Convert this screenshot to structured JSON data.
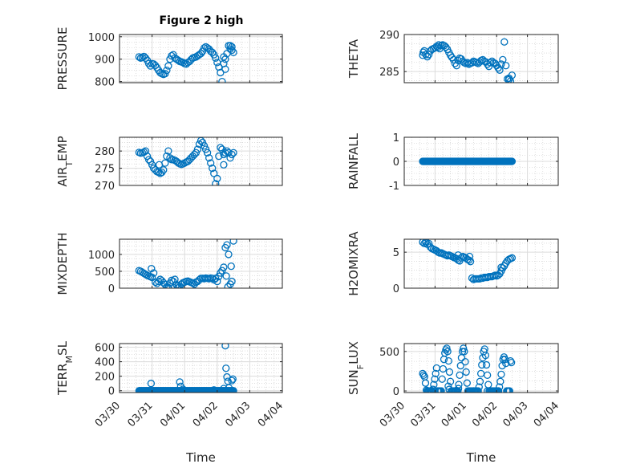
{
  "figure": {
    "title": "Figure 2 high",
    "marker_color": "#0072bd",
    "axis_color": "#262626",
    "grid_color": "#c8c8c8"
  },
  "chart_data": [
    {
      "type": "scatter",
      "ylabel": "PRESSURE",
      "title": "Figure 2 high",
      "xlim": [
        "03/30",
        "04/04"
      ],
      "ylim": [
        795,
        1010
      ],
      "yticks": [
        800,
        900,
        1000
      ],
      "xticks": [
        "03/30",
        "03/31",
        "04/01",
        "04/02",
        "04/03",
        "04/04"
      ],
      "show_xticklabels": false,
      "xlabel": "",
      "grid": true,
      "x": [
        0.6,
        0.65,
        0.7,
        0.75,
        0.8,
        0.85,
        0.9,
        0.95,
        1.0,
        1.05,
        1.1,
        1.15,
        1.2,
        1.25,
        1.3,
        1.35,
        1.4,
        1.45,
        1.5,
        1.55,
        1.6,
        1.65,
        1.7,
        1.75,
        1.8,
        1.85,
        1.9,
        1.95,
        2.0,
        2.05,
        2.1,
        2.15,
        2.2,
        2.25,
        2.3,
        2.35,
        2.4,
        2.45,
        2.5,
        2.55,
        2.6,
        2.65,
        2.7,
        2.75,
        2.8,
        2.85,
        2.9,
        2.95,
        3.0,
        3.05,
        3.1,
        3.15,
        3.2,
        3.25,
        3.3,
        3.35,
        3.4,
        3.45,
        3.5
      ],
      "y": [
        910,
        905,
        908,
        912,
        905,
        895,
        880,
        870,
        880,
        878,
        872,
        862,
        850,
        840,
        835,
        832,
        835,
        850,
        870,
        900,
        915,
        920,
        905,
        900,
        895,
        890,
        888,
        885,
        880,
        878,
        885,
        890,
        898,
        905,
        908,
        910,
        915,
        920,
        925,
        935,
        950,
        955,
        950,
        945,
        935,
        930,
        920,
        905,
        885,
        865,
        840,
        800,
        880,
        900,
        925,
        960,
        960,
        955,
        930
      ],
      "extra": [
        [
          3.25,
          855
        ],
        [
          3.2,
          910
        ],
        [
          3.45,
          940
        ],
        [
          3.4,
          945
        ]
      ]
    },
    {
      "type": "scatter",
      "ylabel": "THETA",
      "xlim": [
        "03/30",
        "04/04"
      ],
      "ylim": [
        283.5,
        290
      ],
      "yticks": [
        285,
        290
      ],
      "xticks": [
        "03/30",
        "03/31",
        "04/01",
        "04/02",
        "04/03",
        "04/04"
      ],
      "show_xticklabels": false,
      "xlabel": "",
      "grid": true,
      "x": [
        0.6,
        0.65,
        0.7,
        0.75,
        0.8,
        0.85,
        0.9,
        0.95,
        1.0,
        1.05,
        1.1,
        1.15,
        1.2,
        1.25,
        1.3,
        1.35,
        1.4,
        1.45,
        1.5,
        1.55,
        1.6,
        1.65,
        1.7,
        1.75,
        1.8,
        1.85,
        1.9,
        1.95,
        2.0,
        2.05,
        2.1,
        2.15,
        2.2,
        2.25,
        2.3,
        2.35,
        2.4,
        2.45,
        2.5,
        2.55,
        2.6,
        2.65,
        2.7,
        2.75,
        2.8,
        2.85,
        2.9,
        2.95,
        3.0,
        3.05,
        3.1,
        3.15,
        3.2,
        3.25,
        3.3,
        3.35,
        3.4,
        3.45,
        3.5
      ],
      "y": [
        287.2,
        287.8,
        287.3,
        287.0,
        287.3,
        287.8,
        288.0,
        288.1,
        288.2,
        288.4,
        288.3,
        288.1,
        288.5,
        288.6,
        288.5,
        288.3,
        288.0,
        287.6,
        287.2,
        286.9,
        286.6,
        286.1,
        285.8,
        286.5,
        286.8,
        286.7,
        286.4,
        286.2,
        286.1,
        286.2,
        286.0,
        286.1,
        286.2,
        286.4,
        286.3,
        286.2,
        286.1,
        286.3,
        286.5,
        286.6,
        286.4,
        286.3,
        286.0,
        285.7,
        286.2,
        286.4,
        286.2,
        286.1,
        285.8,
        285.5,
        285.2,
        286.0,
        286.6,
        289.0,
        285.8,
        284.0,
        283.9,
        283.7,
        284.5
      ],
      "extra": [
        [
          0.62,
          287.6
        ],
        [
          1.12,
          288.6
        ],
        [
          3.4,
          284.1
        ]
      ]
    },
    {
      "type": "scatter",
      "ylabel": "AIR_TEMP",
      "ylabel_main": "AIR",
      "ylabel_sub": "T",
      "ylabel_rest": "EMP",
      "xlim": [
        "03/30",
        "04/04"
      ],
      "ylim": [
        270,
        284
      ],
      "yticks": [
        270,
        275,
        280
      ],
      "xticks": [
        "03/30",
        "03/31",
        "04/01",
        "04/02",
        "04/03",
        "04/04"
      ],
      "show_xticklabels": false,
      "xlabel": "",
      "grid": true,
      "x": [
        0.6,
        0.65,
        0.7,
        0.75,
        0.8,
        0.85,
        0.9,
        0.95,
        1.0,
        1.05,
        1.1,
        1.15,
        1.2,
        1.25,
        1.3,
        1.35,
        1.4,
        1.45,
        1.5,
        1.55,
        1.6,
        1.65,
        1.7,
        1.75,
        1.8,
        1.85,
        1.9,
        1.95,
        2.0,
        2.05,
        2.1,
        2.15,
        2.2,
        2.25,
        2.3,
        2.35,
        2.4,
        2.45,
        2.5,
        2.55,
        2.6,
        2.65,
        2.7,
        2.75,
        2.8,
        2.85,
        2.9,
        2.95,
        3.0,
        3.05,
        3.1,
        3.15,
        3.2,
        3.25,
        3.3,
        3.35,
        3.4,
        3.45,
        3.5
      ],
      "y": [
        279.6,
        279.4,
        279.5,
        279.7,
        280.0,
        278.5,
        277.5,
        277.0,
        276.0,
        275.0,
        274.5,
        274.0,
        273.8,
        273.5,
        273.8,
        274.5,
        276.5,
        278.5,
        280.0,
        278.0,
        277.5,
        277.5,
        277.3,
        277.0,
        276.6,
        276.3,
        276.1,
        276.3,
        276.5,
        276.8,
        277.0,
        277.5,
        278.0,
        278.5,
        279.0,
        279.5,
        280.5,
        282.0,
        283.0,
        282.5,
        281.5,
        280.5,
        279.5,
        278.0,
        276.5,
        275.0,
        273.5,
        270.5,
        272.0,
        278.5,
        281.0,
        280.5,
        279.0,
        279.5,
        280.0,
        279.5,
        278.0,
        279.0,
        279.5
      ],
      "extra": [
        [
          1.22,
          276.0
        ],
        [
          3.2,
          276.0
        ]
      ]
    },
    {
      "type": "scatter",
      "ylabel": "RAINFALL",
      "xlim": [
        "03/30",
        "04/04"
      ],
      "ylim": [
        -1,
        1
      ],
      "yticks": [
        -1,
        0,
        1
      ],
      "xticks": [
        "03/30",
        "03/31",
        "04/01",
        "04/02",
        "04/03",
        "04/04"
      ],
      "show_xticklabels": false,
      "xlabel": "",
      "grid": true,
      "x_start": 0.6,
      "x_end": 3.5,
      "x_step": 0.02,
      "y_const": 0
    },
    {
      "type": "scatter",
      "ylabel": "MIXDEPTH",
      "xlim": [
        "03/30",
        "04/04"
      ],
      "ylim": [
        0,
        1450
      ],
      "yticks": [
        0,
        500,
        1000
      ],
      "xticks": [
        "03/30",
        "03/31",
        "04/01",
        "04/02",
        "04/03",
        "04/04"
      ],
      "show_xticklabels": false,
      "xlabel": "",
      "grid": true,
      "x": [
        0.6,
        0.65,
        0.7,
        0.75,
        0.8,
        0.85,
        0.9,
        0.95,
        1.0,
        1.05,
        1.1,
        1.15,
        1.2,
        1.25,
        1.3,
        1.35,
        1.4,
        1.45,
        1.5,
        1.55,
        1.6,
        1.65,
        1.7,
        1.75,
        1.8,
        1.85,
        1.9,
        1.95,
        2.0,
        2.05,
        2.1,
        2.15,
        2.2,
        2.25,
        2.3,
        2.35,
        2.4,
        2.45,
        2.5,
        2.55,
        2.6,
        2.65,
        2.7,
        2.75,
        2.8,
        2.85,
        2.9,
        2.95,
        3.0,
        3.05,
        3.1,
        3.15,
        3.2,
        3.25,
        3.3,
        3.35,
        3.4,
        3.45,
        3.5
      ],
      "y": [
        520,
        500,
        470,
        440,
        410,
        380,
        360,
        340,
        320,
        450,
        180,
        140,
        200,
        260,
        220,
        160,
        110,
        40,
        20,
        150,
        230,
        200,
        260,
        100,
        70,
        50,
        120,
        160,
        180,
        200,
        210,
        190,
        170,
        150,
        120,
        180,
        200,
        250,
        290,
        290,
        280,
        300,
        290,
        280,
        300,
        290,
        250,
        290,
        200,
        350,
        450,
        520,
        620,
        1200,
        1280,
        1000,
        120,
        200,
        1400
      ],
      "extra": [
        [
          0.98,
          580
        ],
        [
          1.5,
          0
        ],
        [
          1.8,
          10
        ],
        [
          3.28,
          360
        ],
        [
          3.33,
          40
        ],
        [
          3.43,
          650
        ]
      ]
    },
    {
      "type": "scatter",
      "ylabel": "H2OMIXRA",
      "xlim": [
        "03/30",
        "04/04"
      ],
      "ylim": [
        0,
        6.8
      ],
      "yticks": [
        0,
        5
      ],
      "xticks": [
        "03/30",
        "03/31",
        "04/01",
        "04/02",
        "04/03",
        "04/04"
      ],
      "show_xticklabels": false,
      "xlabel": "",
      "grid": true,
      "x": [
        0.6,
        0.65,
        0.7,
        0.75,
        0.8,
        0.85,
        0.9,
        0.95,
        1.0,
        1.05,
        1.1,
        1.15,
        1.2,
        1.25,
        1.3,
        1.35,
        1.4,
        1.45,
        1.5,
        1.55,
        1.6,
        1.65,
        1.7,
        1.75,
        1.8,
        1.85,
        1.9,
        1.95,
        2.0,
        2.05,
        2.1,
        2.15,
        2.2,
        2.25,
        2.3,
        2.35,
        2.4,
        2.45,
        2.5,
        2.55,
        2.6,
        2.65,
        2.7,
        2.75,
        2.8,
        2.85,
        2.9,
        2.95,
        3.0,
        3.05,
        3.1,
        3.15,
        3.2,
        3.25,
        3.3,
        3.35,
        3.4,
        3.45,
        3.5
      ],
      "y": [
        6.4,
        6.2,
        6.3,
        6.1,
        6.2,
        5.7,
        5.5,
        5.4,
        5.3,
        5.2,
        5.0,
        4.9,
        4.9,
        4.8,
        4.7,
        4.6,
        4.5,
        4.6,
        4.5,
        4.4,
        4.3,
        4.2,
        4.1,
        3.9,
        3.8,
        4.2,
        4.4,
        4.3,
        4.2,
        4.0,
        3.9,
        3.7,
        1.4,
        1.2,
        1.3,
        1.3,
        1.3,
        1.3,
        1.4,
        1.4,
        1.5,
        1.5,
        1.5,
        1.6,
        1.6,
        1.6,
        1.7,
        1.8,
        1.7,
        1.8,
        2.0,
        2.4,
        2.8,
        3.1,
        3.5,
        3.8,
        4.0,
        4.1,
        4.2
      ],
      "extra": [
        [
          0.7,
          6.5
        ],
        [
          1.75,
          4.6
        ],
        [
          2.12,
          4.4
        ],
        [
          3.15,
          2.9
        ]
      ]
    },
    {
      "type": "scatter",
      "ylabel": "TERR_MSL",
      "ylabel_main": "TERR",
      "ylabel_sub": "M",
      "ylabel_rest": "SL",
      "xlim": [
        "03/30",
        "04/04"
      ],
      "ylim": [
        -25,
        650
      ],
      "yticks": [
        0,
        200,
        400,
        600
      ],
      "xticks": [
        "03/30",
        "03/31",
        "04/01",
        "04/02",
        "04/03",
        "04/04"
      ],
      "xticklabels": [
        "03/30",
        "03/31",
        "04/01",
        "04/02",
        "04/03",
        "04/04"
      ],
      "show_xticklabels": true,
      "xlabel": "Time",
      "grid": true,
      "x_start": 0.6,
      "x_end": 3.5,
      "x_step": 0.02,
      "y_const": 0,
      "extra": [
        [
          0.97,
          100
        ],
        [
          1.85,
          120
        ],
        [
          1.88,
          60
        ],
        [
          1.95,
          20
        ],
        [
          2.9,
          10
        ],
        [
          3.2,
          30
        ],
        [
          3.25,
          620
        ],
        [
          3.27,
          310
        ],
        [
          3.3,
          190
        ],
        [
          3.33,
          130
        ],
        [
          3.36,
          40
        ],
        [
          3.45,
          140
        ],
        [
          3.48,
          160
        ]
      ]
    },
    {
      "type": "scatter",
      "ylabel": "SUN_FLUX",
      "ylabel_main": "SUN",
      "ylabel_sub": "F",
      "ylabel_rest": "LUX",
      "xlim": [
        "03/30",
        "04/04"
      ],
      "ylim": [
        -20,
        600
      ],
      "yticks": [
        0,
        500
      ],
      "xticks": [
        "03/30",
        "03/31",
        "04/01",
        "04/02",
        "04/03",
        "04/04"
      ],
      "xticklabels": [
        "03/30",
        "03/31",
        "04/01",
        "04/02",
        "04/03",
        "04/04"
      ],
      "show_xticklabels": true,
      "xlabel": "Time",
      "grid": true,
      "x": [
        0.6,
        0.63,
        0.66,
        0.69,
        0.72,
        0.75,
        0.78,
        0.81,
        0.84,
        0.87,
        0.9,
        0.93,
        0.96,
        0.99,
        1.02,
        1.05,
        1.08,
        1.11,
        1.14,
        1.17,
        1.2,
        1.23,
        1.26,
        1.29,
        1.32,
        1.35,
        1.38,
        1.41,
        1.44,
        1.47,
        1.5,
        1.53,
        1.56,
        1.59,
        1.62,
        1.65,
        1.68,
        1.71,
        1.74,
        1.77,
        1.8,
        1.83,
        1.86,
        1.89,
        1.92,
        1.95,
        1.98,
        2.01,
        2.04,
        2.07,
        2.1,
        2.13,
        2.16,
        2.19,
        2.22,
        2.25,
        2.28,
        2.31,
        2.34,
        2.37,
        2.4,
        2.43,
        2.46,
        2.49,
        2.52,
        2.55,
        2.58,
        2.61,
        2.64,
        2.67,
        2.7,
        2.73,
        2.76,
        2.79,
        2.82,
        2.85,
        2.88,
        2.91,
        2.94,
        2.97,
        3.0,
        3.03,
        3.06,
        3.09,
        3.12,
        3.15,
        3.18,
        3.21,
        3.24,
        3.27,
        3.3,
        3.33,
        3.36,
        3.39,
        3.42,
        3.45,
        3.48
      ],
      "y": [
        220,
        200,
        180,
        100,
        10,
        0,
        0,
        0,
        0,
        0,
        0,
        20,
        80,
        150,
        220,
        290,
        0,
        0,
        0,
        0,
        0,
        150,
        280,
        400,
        480,
        520,
        540,
        500,
        380,
        240,
        120,
        0,
        0,
        0,
        0,
        0,
        0,
        0,
        0,
        80,
        200,
        320,
        420,
        500,
        540,
        500,
        370,
        240,
        100,
        0,
        0,
        0,
        0,
        0,
        0,
        0,
        0,
        0,
        0,
        0,
        0,
        50,
        120,
        220,
        330,
        420,
        500,
        530,
        450,
        330,
        200,
        80,
        0,
        0,
        0,
        0,
        0,
        0,
        0,
        0,
        0,
        0,
        0,
        50,
        120,
        210,
        320,
        400,
        430,
        400,
        350,
        0,
        0,
        0,
        0,
        380,
        360
      ],
      "extra": [
        [
          1.43,
          60
        ],
        [
          1.46,
          20
        ],
        [
          1.76,
          30
        ],
        [
          2.7,
          0
        ],
        [
          3.06,
          0
        ]
      ]
    }
  ]
}
